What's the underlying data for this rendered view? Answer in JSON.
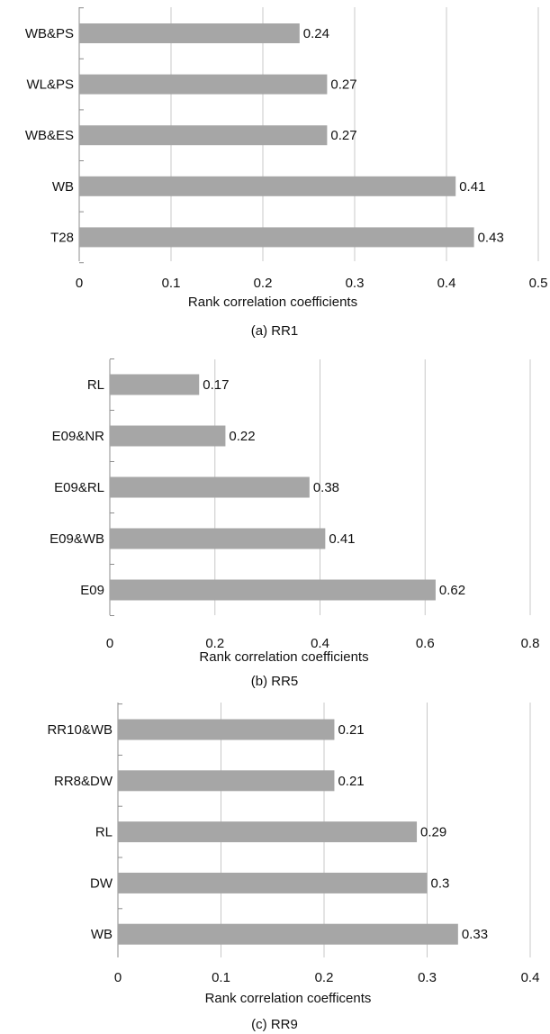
{
  "chart_data": [
    {
      "type": "bar",
      "orientation": "horizontal",
      "categories": [
        "WB&PS",
        "WL&PS",
        "WB&ES",
        "WB",
        "T28"
      ],
      "values": [
        0.24,
        0.27,
        0.27,
        0.41,
        0.43
      ],
      "value_labels": [
        "0.24",
        "0.27",
        "0.27",
        "0.41",
        "0.43"
      ],
      "xlabel": "Rank correlation coefficients",
      "caption": "(a) RR1",
      "xlim": [
        0,
        0.5
      ],
      "xticks": [
        "0",
        "0.1",
        "0.2",
        "0.3",
        "0.4",
        "0.5"
      ],
      "grid": true
    },
    {
      "type": "bar",
      "orientation": "horizontal",
      "categories": [
        "RL",
        "E09&NR",
        "E09&RL",
        "E09&WB",
        "E09"
      ],
      "values": [
        0.17,
        0.22,
        0.38,
        0.41,
        0.62
      ],
      "value_labels": [
        "0.17",
        "0.22",
        "0.38",
        "0.41",
        "0.62"
      ],
      "xlabel": "Rank correlation coefficients",
      "caption": "(b) RR5",
      "xlim": [
        0,
        0.8
      ],
      "xticks": [
        "0",
        "0.2",
        "0.4",
        "0.6",
        "0.8"
      ],
      "grid": true
    },
    {
      "type": "bar",
      "orientation": "horizontal",
      "categories": [
        "RR10&WB",
        "RR8&DW",
        "RL",
        "DW",
        "WB"
      ],
      "values": [
        0.21,
        0.21,
        0.29,
        0.3,
        0.33
      ],
      "value_labels": [
        "0.21",
        "0.21",
        "0.29",
        "0.3",
        "0.33"
      ],
      "xlabel": "Rank correlation coefficents",
      "caption": "(c) RR9",
      "xlim": [
        0,
        0.4
      ],
      "xticks": [
        "0",
        "0.1",
        "0.2",
        "0.3",
        "0.4"
      ],
      "grid": true
    }
  ],
  "colors": {
    "bar": "#a6a6a6",
    "grid": "#c8c8c8",
    "axis": "#8c8c8c",
    "text": "#111111"
  }
}
